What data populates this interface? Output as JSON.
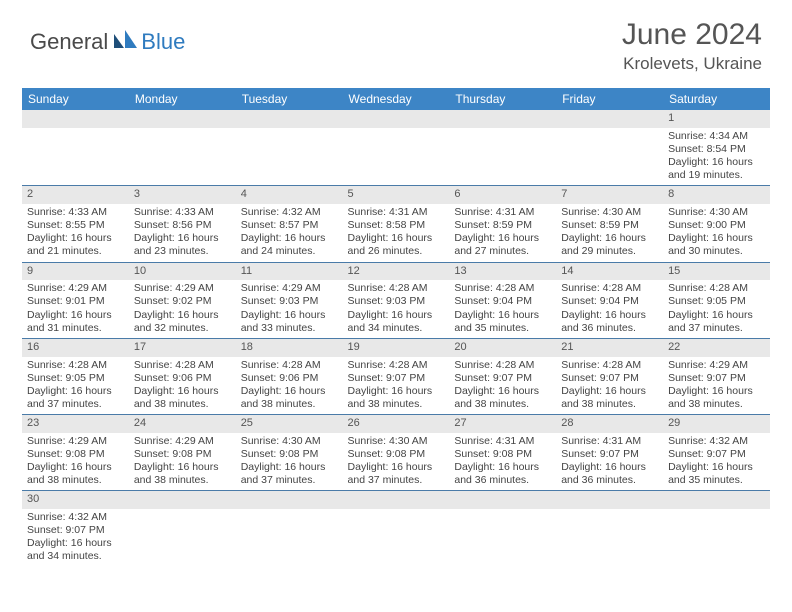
{
  "logo": {
    "part1": "General",
    "part2": "Blue"
  },
  "title": "June 2024",
  "location": "Krolevets, Ukraine",
  "colors": {
    "header_bg": "#3d85c6",
    "daynum_bg": "#e8e8e8",
    "row_border": "#4a7ba8",
    "text": "#444444",
    "title_text": "#555555",
    "logo_dark": "#4a4a4a",
    "logo_blue": "#2f7bbf"
  },
  "day_headers": [
    "Sunday",
    "Monday",
    "Tuesday",
    "Wednesday",
    "Thursday",
    "Friday",
    "Saturday"
  ],
  "cell_fontsize": 10.5,
  "weeks": [
    [
      {
        "day": ""
      },
      {
        "day": ""
      },
      {
        "day": ""
      },
      {
        "day": ""
      },
      {
        "day": ""
      },
      {
        "day": ""
      },
      {
        "day": "1",
        "sunrise": "Sunrise: 4:34 AM",
        "sunset": "Sunset: 8:54 PM",
        "dl1": "Daylight: 16 hours",
        "dl2": "and 19 minutes."
      }
    ],
    [
      {
        "day": "2",
        "sunrise": "Sunrise: 4:33 AM",
        "sunset": "Sunset: 8:55 PM",
        "dl1": "Daylight: 16 hours",
        "dl2": "and 21 minutes."
      },
      {
        "day": "3",
        "sunrise": "Sunrise: 4:33 AM",
        "sunset": "Sunset: 8:56 PM",
        "dl1": "Daylight: 16 hours",
        "dl2": "and 23 minutes."
      },
      {
        "day": "4",
        "sunrise": "Sunrise: 4:32 AM",
        "sunset": "Sunset: 8:57 PM",
        "dl1": "Daylight: 16 hours",
        "dl2": "and 24 minutes."
      },
      {
        "day": "5",
        "sunrise": "Sunrise: 4:31 AM",
        "sunset": "Sunset: 8:58 PM",
        "dl1": "Daylight: 16 hours",
        "dl2": "and 26 minutes."
      },
      {
        "day": "6",
        "sunrise": "Sunrise: 4:31 AM",
        "sunset": "Sunset: 8:59 PM",
        "dl1": "Daylight: 16 hours",
        "dl2": "and 27 minutes."
      },
      {
        "day": "7",
        "sunrise": "Sunrise: 4:30 AM",
        "sunset": "Sunset: 8:59 PM",
        "dl1": "Daylight: 16 hours",
        "dl2": "and 29 minutes."
      },
      {
        "day": "8",
        "sunrise": "Sunrise: 4:30 AM",
        "sunset": "Sunset: 9:00 PM",
        "dl1": "Daylight: 16 hours",
        "dl2": "and 30 minutes."
      }
    ],
    [
      {
        "day": "9",
        "sunrise": "Sunrise: 4:29 AM",
        "sunset": "Sunset: 9:01 PM",
        "dl1": "Daylight: 16 hours",
        "dl2": "and 31 minutes."
      },
      {
        "day": "10",
        "sunrise": "Sunrise: 4:29 AM",
        "sunset": "Sunset: 9:02 PM",
        "dl1": "Daylight: 16 hours",
        "dl2": "and 32 minutes."
      },
      {
        "day": "11",
        "sunrise": "Sunrise: 4:29 AM",
        "sunset": "Sunset: 9:03 PM",
        "dl1": "Daylight: 16 hours",
        "dl2": "and 33 minutes."
      },
      {
        "day": "12",
        "sunrise": "Sunrise: 4:28 AM",
        "sunset": "Sunset: 9:03 PM",
        "dl1": "Daylight: 16 hours",
        "dl2": "and 34 minutes."
      },
      {
        "day": "13",
        "sunrise": "Sunrise: 4:28 AM",
        "sunset": "Sunset: 9:04 PM",
        "dl1": "Daylight: 16 hours",
        "dl2": "and 35 minutes."
      },
      {
        "day": "14",
        "sunrise": "Sunrise: 4:28 AM",
        "sunset": "Sunset: 9:04 PM",
        "dl1": "Daylight: 16 hours",
        "dl2": "and 36 minutes."
      },
      {
        "day": "15",
        "sunrise": "Sunrise: 4:28 AM",
        "sunset": "Sunset: 9:05 PM",
        "dl1": "Daylight: 16 hours",
        "dl2": "and 37 minutes."
      }
    ],
    [
      {
        "day": "16",
        "sunrise": "Sunrise: 4:28 AM",
        "sunset": "Sunset: 9:05 PM",
        "dl1": "Daylight: 16 hours",
        "dl2": "and 37 minutes."
      },
      {
        "day": "17",
        "sunrise": "Sunrise: 4:28 AM",
        "sunset": "Sunset: 9:06 PM",
        "dl1": "Daylight: 16 hours",
        "dl2": "and 38 minutes."
      },
      {
        "day": "18",
        "sunrise": "Sunrise: 4:28 AM",
        "sunset": "Sunset: 9:06 PM",
        "dl1": "Daylight: 16 hours",
        "dl2": "and 38 minutes."
      },
      {
        "day": "19",
        "sunrise": "Sunrise: 4:28 AM",
        "sunset": "Sunset: 9:07 PM",
        "dl1": "Daylight: 16 hours",
        "dl2": "and 38 minutes."
      },
      {
        "day": "20",
        "sunrise": "Sunrise: 4:28 AM",
        "sunset": "Sunset: 9:07 PM",
        "dl1": "Daylight: 16 hours",
        "dl2": "and 38 minutes."
      },
      {
        "day": "21",
        "sunrise": "Sunrise: 4:28 AM",
        "sunset": "Sunset: 9:07 PM",
        "dl1": "Daylight: 16 hours",
        "dl2": "and 38 minutes."
      },
      {
        "day": "22",
        "sunrise": "Sunrise: 4:29 AM",
        "sunset": "Sunset: 9:07 PM",
        "dl1": "Daylight: 16 hours",
        "dl2": "and 38 minutes."
      }
    ],
    [
      {
        "day": "23",
        "sunrise": "Sunrise: 4:29 AM",
        "sunset": "Sunset: 9:08 PM",
        "dl1": "Daylight: 16 hours",
        "dl2": "and 38 minutes."
      },
      {
        "day": "24",
        "sunrise": "Sunrise: 4:29 AM",
        "sunset": "Sunset: 9:08 PM",
        "dl1": "Daylight: 16 hours",
        "dl2": "and 38 minutes."
      },
      {
        "day": "25",
        "sunrise": "Sunrise: 4:30 AM",
        "sunset": "Sunset: 9:08 PM",
        "dl1": "Daylight: 16 hours",
        "dl2": "and 37 minutes."
      },
      {
        "day": "26",
        "sunrise": "Sunrise: 4:30 AM",
        "sunset": "Sunset: 9:08 PM",
        "dl1": "Daylight: 16 hours",
        "dl2": "and 37 minutes."
      },
      {
        "day": "27",
        "sunrise": "Sunrise: 4:31 AM",
        "sunset": "Sunset: 9:08 PM",
        "dl1": "Daylight: 16 hours",
        "dl2": "and 36 minutes."
      },
      {
        "day": "28",
        "sunrise": "Sunrise: 4:31 AM",
        "sunset": "Sunset: 9:07 PM",
        "dl1": "Daylight: 16 hours",
        "dl2": "and 36 minutes."
      },
      {
        "day": "29",
        "sunrise": "Sunrise: 4:32 AM",
        "sunset": "Sunset: 9:07 PM",
        "dl1": "Daylight: 16 hours",
        "dl2": "and 35 minutes."
      }
    ],
    [
      {
        "day": "30",
        "sunrise": "Sunrise: 4:32 AM",
        "sunset": "Sunset: 9:07 PM",
        "dl1": "Daylight: 16 hours",
        "dl2": "and 34 minutes."
      },
      {
        "day": ""
      },
      {
        "day": ""
      },
      {
        "day": ""
      },
      {
        "day": ""
      },
      {
        "day": ""
      },
      {
        "day": ""
      }
    ]
  ]
}
